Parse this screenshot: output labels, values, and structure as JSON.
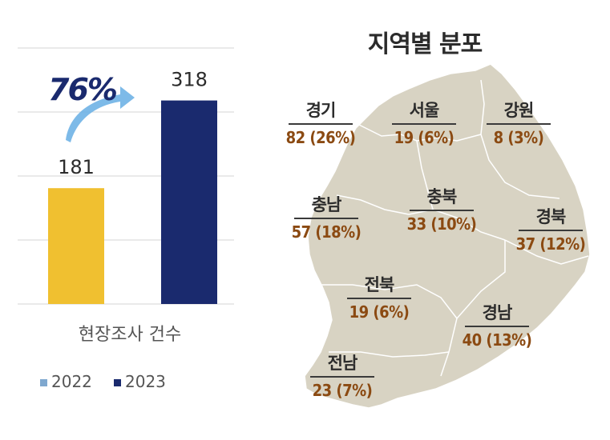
{
  "chart_data": [
    {
      "type": "bar",
      "categories": [
        "2022",
        "2023"
      ],
      "series": [
        {
          "name": "2022",
          "values": [
            181,
            null
          ],
          "color": "#f0c030"
        },
        {
          "name": "2023",
          "values": [
            null,
            318
          ],
          "color": "#1a2a6e"
        }
      ],
      "values": [
        181,
        318
      ],
      "xlabel": "현장조사 건수",
      "ylim": [
        0,
        400
      ],
      "grid": true,
      "annotation": "76%",
      "legend": [
        "2022",
        "2023"
      ],
      "legend_position": "bottom",
      "colors": {
        "bar_2022": "#f0c030",
        "bar_2023": "#1a2a6e",
        "legend_2022": "#7fa8cf",
        "arrow": "#6fb3e6"
      }
    },
    {
      "type": "table",
      "title": "지역별 분포",
      "regions": [
        {
          "name": "경기",
          "value": "82 (26%)"
        },
        {
          "name": "서울",
          "value": "19 (6%)"
        },
        {
          "name": "강원",
          "value": "8 (3%)"
        },
        {
          "name": "충남",
          "value": "57 (18%)"
        },
        {
          "name": "충북",
          "value": "33 (10%)"
        },
        {
          "name": "경북",
          "value": "37 (12%)"
        },
        {
          "name": "전북",
          "value": "19 (6%)"
        },
        {
          "name": "경남",
          "value": "40 (13%)"
        },
        {
          "name": "전남",
          "value": "23 (7%)"
        }
      ],
      "colors": {
        "map_fill": "#d8d3c3",
        "map_stroke": "#ffffff",
        "value_text": "#8b4a12"
      }
    }
  ]
}
